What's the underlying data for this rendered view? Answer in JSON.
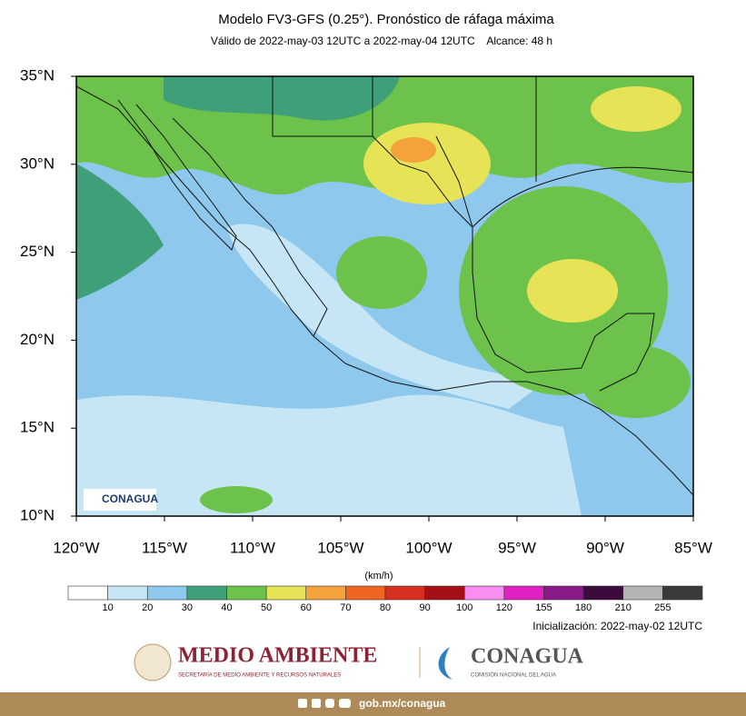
{
  "header": {
    "title": "Modelo FV3-GFS (0.25°). Pronóstico de ráfaga máxima",
    "subtitle": "Válido de 2022-may-03 12UTC a 2022-may-04 12UTC    Alcance: 48 h"
  },
  "map": {
    "lat_labels": [
      "35°N",
      "30°N",
      "25°N",
      "20°N",
      "15°N",
      "10°N"
    ],
    "lon_labels": [
      "120°W",
      "115°W",
      "110°W",
      "105°W",
      "100°W",
      "95°W",
      "90°W",
      "85°W"
    ],
    "watermark": "CONAGUA"
  },
  "colorbar": {
    "unit": "(km/h)",
    "labels": [
      "10",
      "20",
      "30",
      "40",
      "50",
      "60",
      "70",
      "80",
      "90",
      "100",
      "120",
      "155",
      "180",
      "210",
      "255"
    ],
    "colors": [
      "#ffffff",
      "#c6e6f6",
      "#8ec8ec",
      "#3f9f78",
      "#6cc24a",
      "#e6e456",
      "#f4a23c",
      "#ee6420",
      "#d7301f",
      "#a50f15",
      "#f98ef2",
      "#e020c0",
      "#8a1a8a",
      "#3d0a3d",
      "#b4b4b4",
      "#3a3a3a"
    ]
  },
  "initialization": "Inicialización: 2022-may-02 12UTC",
  "footer": {
    "semarnat": "MEDIO AMBIENTE",
    "semarnat_sub": "SECRETARÍA DE MEDIO AMBIENTE Y RECURSOS NATURALES",
    "conagua": "CONAGUA",
    "conagua_sub": "COMISIÓN NACIONAL DEL AGUA",
    "url": "gob.mx/conagua"
  }
}
